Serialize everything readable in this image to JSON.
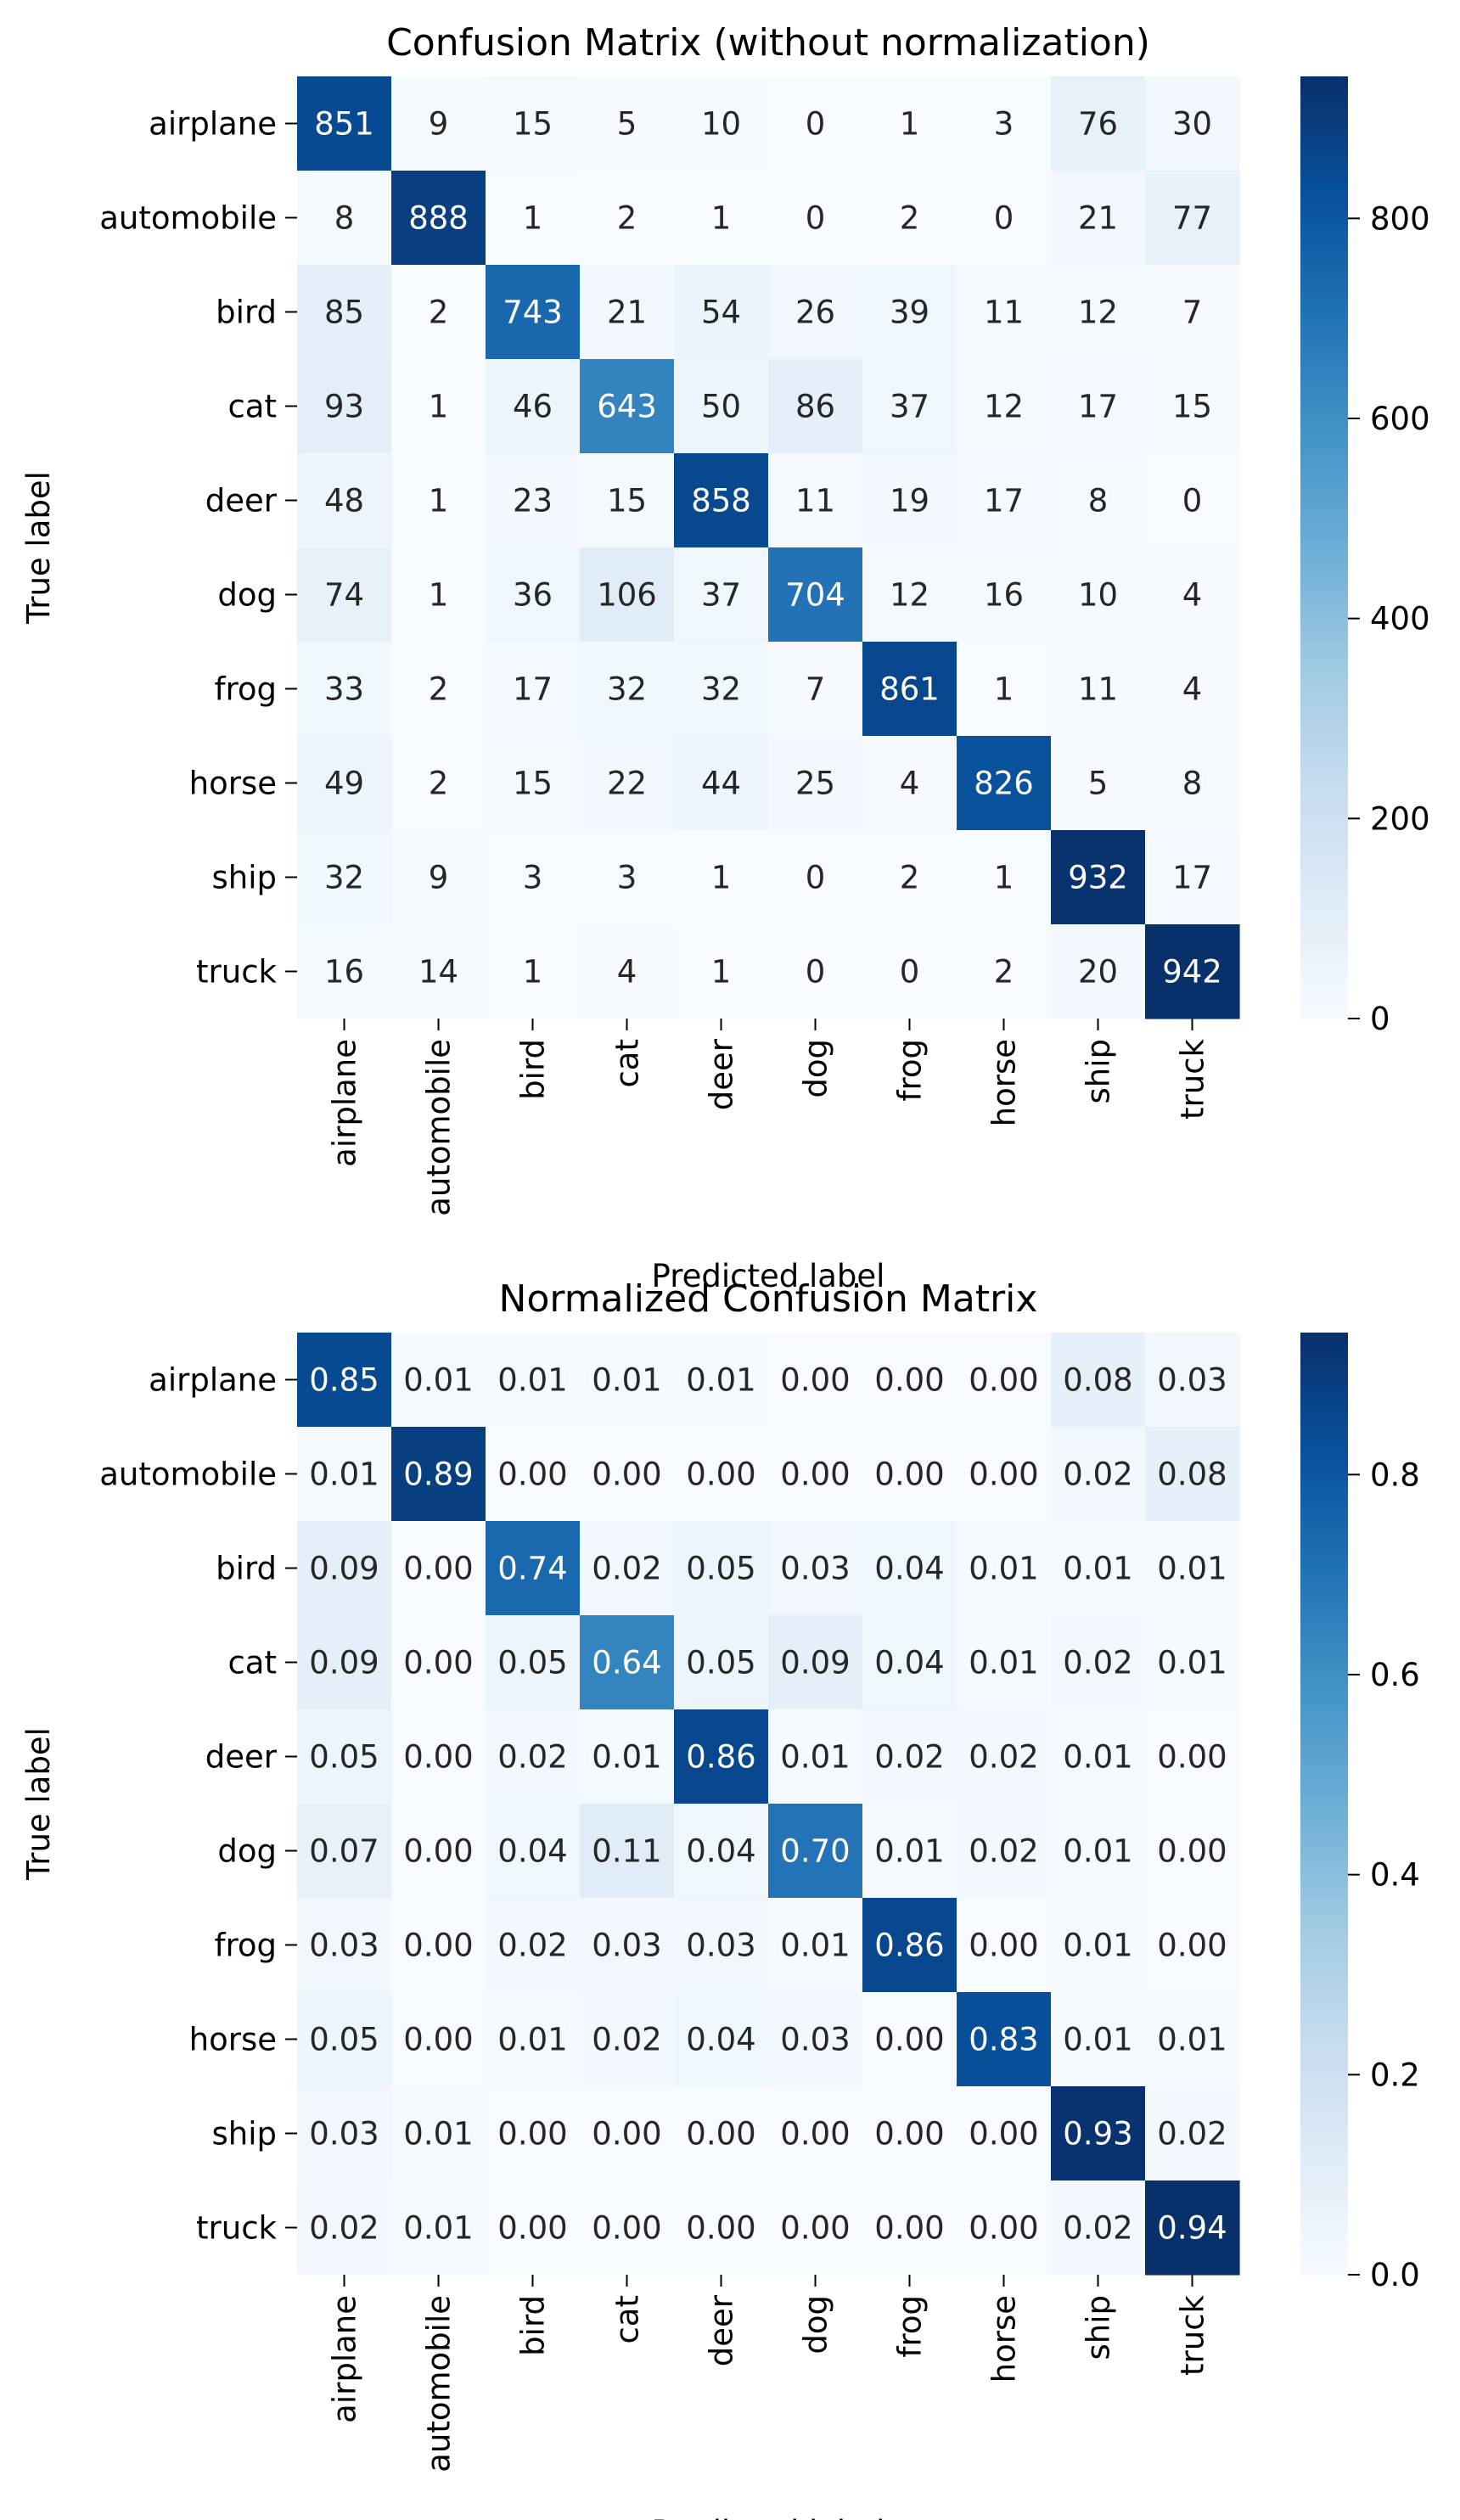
{
  "chart_data": [
    {
      "type": "heatmap",
      "title": "Confusion Matrix (without normalization)",
      "xlabel": "Predicted label",
      "ylabel": "True label",
      "x_categories": [
        "airplane",
        "automobile",
        "bird",
        "cat",
        "deer",
        "dog",
        "frog",
        "horse",
        "ship",
        "truck"
      ],
      "y_categories": [
        "airplane",
        "automobile",
        "bird",
        "cat",
        "deer",
        "dog",
        "frog",
        "horse",
        "ship",
        "truck"
      ],
      "values": [
        [
          851,
          9,
          15,
          5,
          10,
          0,
          1,
          3,
          76,
          30
        ],
        [
          8,
          888,
          1,
          2,
          1,
          0,
          2,
          0,
          21,
          77
        ],
        [
          85,
          2,
          743,
          21,
          54,
          26,
          39,
          11,
          12,
          7
        ],
        [
          93,
          1,
          46,
          643,
          50,
          86,
          37,
          12,
          17,
          15
        ],
        [
          48,
          1,
          23,
          15,
          858,
          11,
          19,
          17,
          8,
          0
        ],
        [
          74,
          1,
          36,
          106,
          37,
          704,
          12,
          16,
          10,
          4
        ],
        [
          33,
          2,
          17,
          32,
          32,
          7,
          861,
          1,
          11,
          4
        ],
        [
          49,
          2,
          15,
          22,
          44,
          25,
          4,
          826,
          5,
          8
        ],
        [
          32,
          9,
          3,
          3,
          1,
          0,
          2,
          1,
          932,
          17
        ],
        [
          16,
          14,
          1,
          4,
          1,
          0,
          0,
          2,
          20,
          942
        ]
      ],
      "value_format": "integer",
      "colormap": "Blues",
      "vmin": 0,
      "vmax": 942,
      "colorbar_ticks": [
        0,
        200,
        400,
        600,
        800
      ],
      "colorbar_tick_labels": [
        "0",
        "200",
        "400",
        "600",
        "800"
      ],
      "grid": false
    },
    {
      "type": "heatmap",
      "title": "Normalized Confusion Matrix",
      "xlabel": "Predicted label",
      "ylabel": "True label",
      "x_categories": [
        "airplane",
        "automobile",
        "bird",
        "cat",
        "deer",
        "dog",
        "frog",
        "horse",
        "ship",
        "truck"
      ],
      "y_categories": [
        "airplane",
        "automobile",
        "bird",
        "cat",
        "deer",
        "dog",
        "frog",
        "horse",
        "ship",
        "truck"
      ],
      "values": [
        [
          0.85,
          0.01,
          0.01,
          0.01,
          0.01,
          0.0,
          0.0,
          0.0,
          0.08,
          0.03
        ],
        [
          0.01,
          0.89,
          0.0,
          0.0,
          0.0,
          0.0,
          0.0,
          0.0,
          0.02,
          0.08
        ],
        [
          0.09,
          0.0,
          0.74,
          0.02,
          0.05,
          0.03,
          0.04,
          0.01,
          0.01,
          0.01
        ],
        [
          0.09,
          0.0,
          0.05,
          0.64,
          0.05,
          0.09,
          0.04,
          0.01,
          0.02,
          0.01
        ],
        [
          0.05,
          0.0,
          0.02,
          0.01,
          0.86,
          0.01,
          0.02,
          0.02,
          0.01,
          0.0
        ],
        [
          0.07,
          0.0,
          0.04,
          0.11,
          0.04,
          0.7,
          0.01,
          0.02,
          0.01,
          0.0
        ],
        [
          0.03,
          0.0,
          0.02,
          0.03,
          0.03,
          0.01,
          0.86,
          0.0,
          0.01,
          0.0
        ],
        [
          0.05,
          0.0,
          0.01,
          0.02,
          0.04,
          0.03,
          0.0,
          0.83,
          0.01,
          0.01
        ],
        [
          0.03,
          0.01,
          0.0,
          0.0,
          0.0,
          0.0,
          0.0,
          0.0,
          0.93,
          0.02
        ],
        [
          0.02,
          0.01,
          0.0,
          0.0,
          0.0,
          0.0,
          0.0,
          0.0,
          0.02,
          0.94
        ]
      ],
      "value_format": "2-decimal",
      "colormap": "Blues",
      "vmin": 0,
      "vmax": 0.942,
      "colorbar_ticks": [
        0.0,
        0.2,
        0.4,
        0.6,
        0.8
      ],
      "colorbar_tick_labels": [
        "0.0",
        "0.2",
        "0.4",
        "0.6",
        "0.8"
      ],
      "grid": false
    }
  ]
}
